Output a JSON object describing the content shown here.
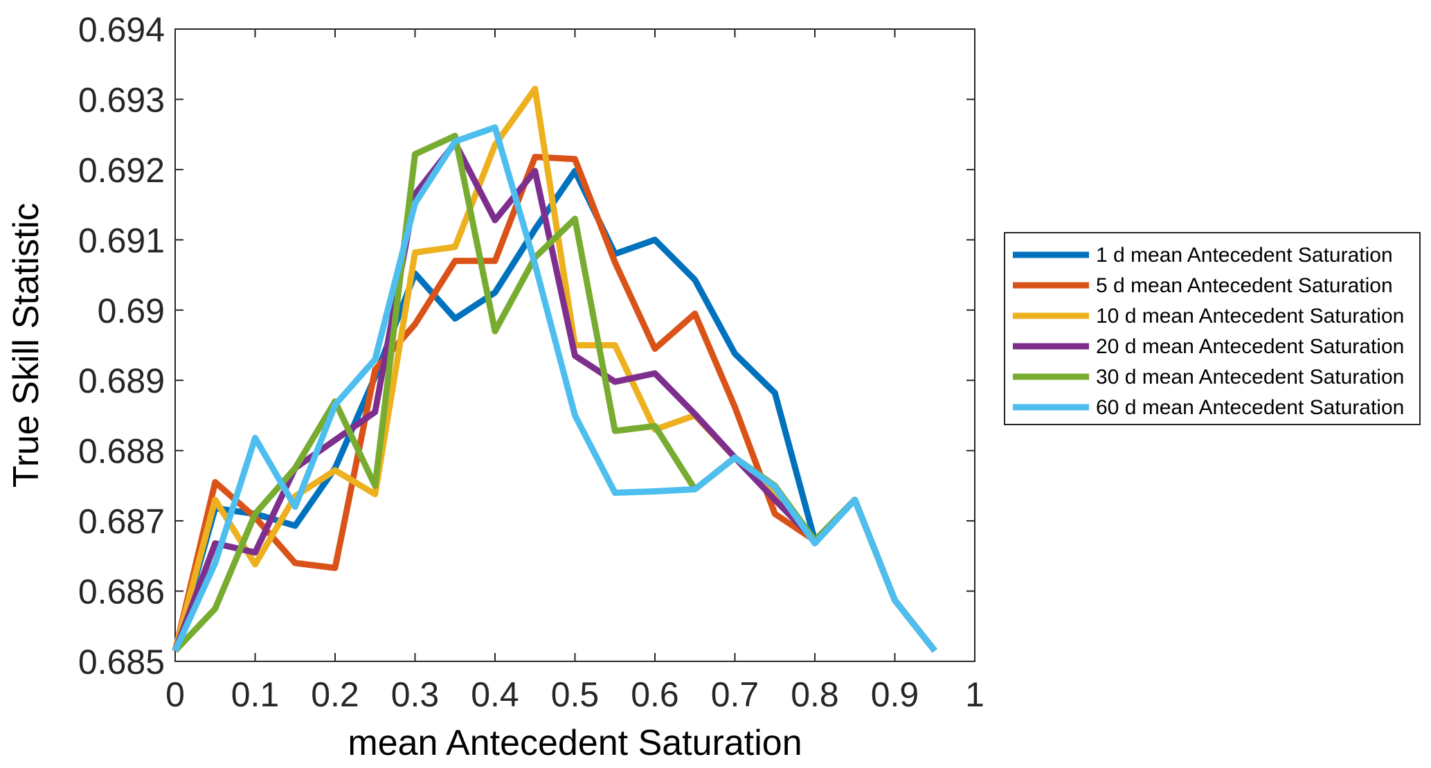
{
  "chart_data": {
    "type": "line",
    "title": "",
    "xlabel": "mean Antecedent Saturation",
    "ylabel": "True Skill Statistic",
    "xlim": [
      0,
      1
    ],
    "ylim": [
      0.685,
      0.694
    ],
    "xticks": [
      0,
      0.1,
      0.2,
      0.3,
      0.4,
      0.5,
      0.6,
      0.7,
      0.8,
      0.9,
      1
    ],
    "xtick_labels": [
      "0",
      "0.1",
      "0.2",
      "0.3",
      "0.4",
      "0.5",
      "0.6",
      "0.7",
      "0.8",
      "0.9",
      "1"
    ],
    "yticks": [
      0.685,
      0.686,
      0.687,
      0.688,
      0.689,
      0.69,
      0.691,
      0.692,
      0.693,
      0.694
    ],
    "ytick_labels": [
      "0.685",
      "0.686",
      "0.687",
      "0.688",
      "0.689",
      "0.69",
      "0.691",
      "0.692",
      "0.693",
      "0.694"
    ],
    "grid": false,
    "legend_position": "outside-right",
    "x": [
      0,
      0.05,
      0.1,
      0.15,
      0.2,
      0.25,
      0.3,
      0.35,
      0.4,
      0.45,
      0.5,
      0.55,
      0.6,
      0.65,
      0.7,
      0.75,
      0.8,
      0.85,
      0.9,
      0.95
    ],
    "series": [
      {
        "name": "1 d mean Antecedent Saturation",
        "color": "#0072BD",
        "values": [
          0.68515,
          0.68718,
          0.6871,
          0.68693,
          0.68775,
          0.68905,
          0.69052,
          0.68988,
          0.69025,
          0.69115,
          0.69198,
          0.6908,
          0.691,
          0.69043,
          0.68938,
          0.68882,
          0.68672,
          0.6873,
          0.68587,
          0.68515
        ]
      },
      {
        "name": "5 d mean Antecedent Saturation",
        "color": "#D95319",
        "values": [
          0.68515,
          0.68755,
          0.68705,
          0.6864,
          0.68633,
          0.68915,
          0.6898,
          0.6907,
          0.6907,
          0.69218,
          0.69215,
          0.69068,
          0.68945,
          0.68995,
          0.68862,
          0.6871,
          0.68672,
          0.6873,
          0.68587,
          0.68515
        ]
      },
      {
        "name": "10 d mean Antecedent Saturation",
        "color": "#EDB120",
        "values": [
          0.68515,
          0.6873,
          0.68638,
          0.68735,
          0.68772,
          0.68738,
          0.69082,
          0.6909,
          0.69235,
          0.69315,
          0.6895,
          0.6895,
          0.6883,
          0.6885,
          0.6879,
          0.6874,
          0.68672,
          0.6873,
          0.68587,
          0.68515
        ]
      },
      {
        "name": "20 d mean Antecedent Saturation",
        "color": "#7E2F8E",
        "values": [
          0.68515,
          0.68668,
          0.68655,
          0.68775,
          0.68815,
          0.68855,
          0.69165,
          0.69238,
          0.69128,
          0.69198,
          0.68935,
          0.68898,
          0.6891,
          0.68852,
          0.6879,
          0.6873,
          0.68672,
          0.6873,
          0.68587,
          0.68515
        ]
      },
      {
        "name": "30 d mean Antecedent Saturation",
        "color": "#77AC30",
        "values": [
          0.68515,
          0.68575,
          0.6871,
          0.68775,
          0.6887,
          0.6875,
          0.69222,
          0.69248,
          0.6897,
          0.69075,
          0.6913,
          0.68828,
          0.68835,
          0.68745,
          0.6879,
          0.6875,
          0.68672,
          0.6873,
          0.68587,
          0.68515
        ]
      },
      {
        "name": "60 d mean Antecedent Saturation",
        "color": "#4DBEEE",
        "values": [
          0.68515,
          0.6864,
          0.68818,
          0.6872,
          0.68865,
          0.6893,
          0.69152,
          0.6924,
          0.6926,
          0.69065,
          0.6885,
          0.6874,
          0.68742,
          0.68745,
          0.6879,
          0.68748,
          0.68668,
          0.6873,
          0.68587,
          0.68515
        ]
      }
    ]
  }
}
